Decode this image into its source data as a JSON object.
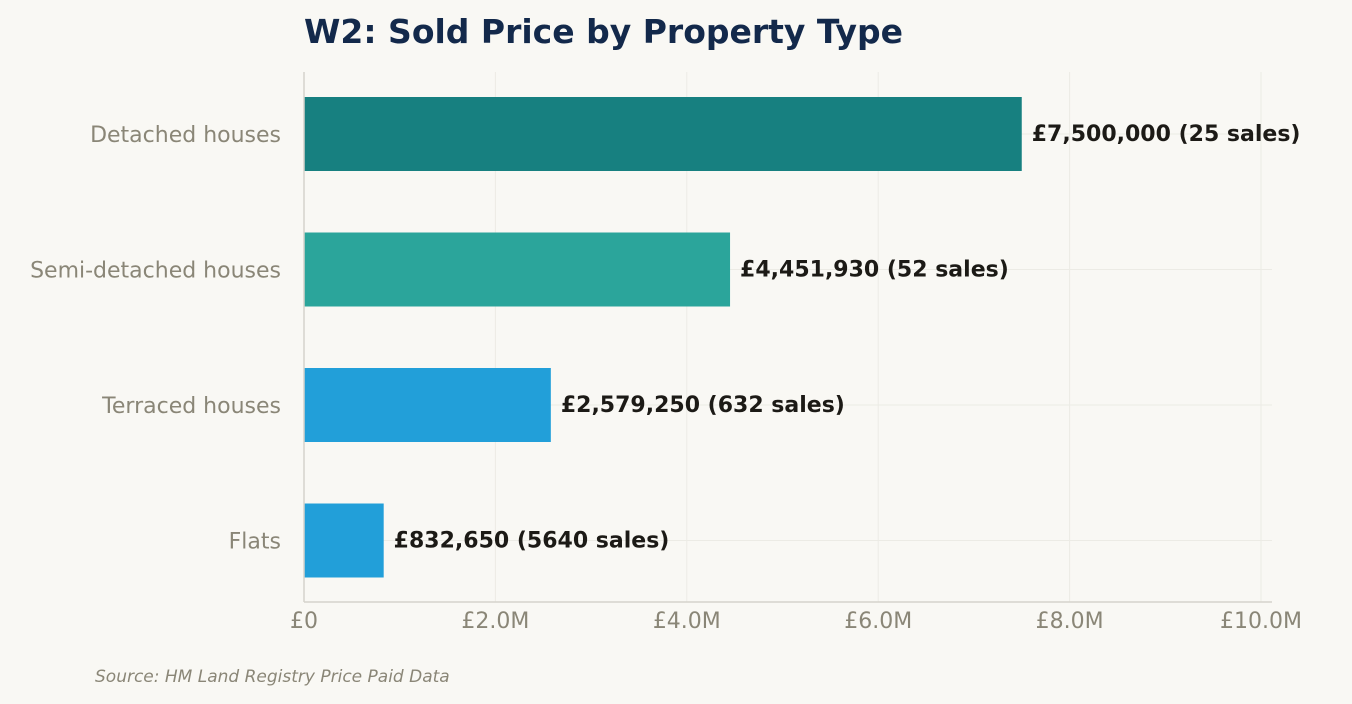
{
  "chart_data": {
    "type": "bar",
    "orientation": "horizontal",
    "title": "W2: Sold Price by Property Type",
    "categories": [
      "Detached houses",
      "Semi-detached houses",
      "Terraced houses",
      "Flats"
    ],
    "values": [
      7500000,
      4451930,
      2579250,
      832650
    ],
    "sales": [
      25,
      52,
      632,
      5640
    ],
    "data_labels": [
      "£7,500,000  (25 sales)",
      "£4,451,930  (52 sales)",
      "£2,579,250  (632 sales)",
      "£832,650  (5640 sales)"
    ],
    "xlim": [
      0,
      10000000
    ],
    "x_ticks": [
      0,
      2000000,
      4000000,
      6000000,
      8000000,
      10000000
    ],
    "x_tick_labels": [
      "£0",
      "£2.0M",
      "£4.0M",
      "£6.0M",
      "£8.0M",
      "£10.0M"
    ],
    "xlabel": "",
    "ylabel": "",
    "grid": true,
    "legend": "none",
    "bar_colors": [
      "#178080",
      "#2ba59b",
      "#229fd9",
      "#229fd9"
    ],
    "source": "Source: HM Land Registry Price Paid Data"
  },
  "colors": {
    "background": "#f9f8f4",
    "title": "#13294b",
    "axis": "#d6d3cc",
    "grid": "#ecebe5",
    "muted_text": "#8a8677",
    "value_text": "#1c1a16"
  }
}
